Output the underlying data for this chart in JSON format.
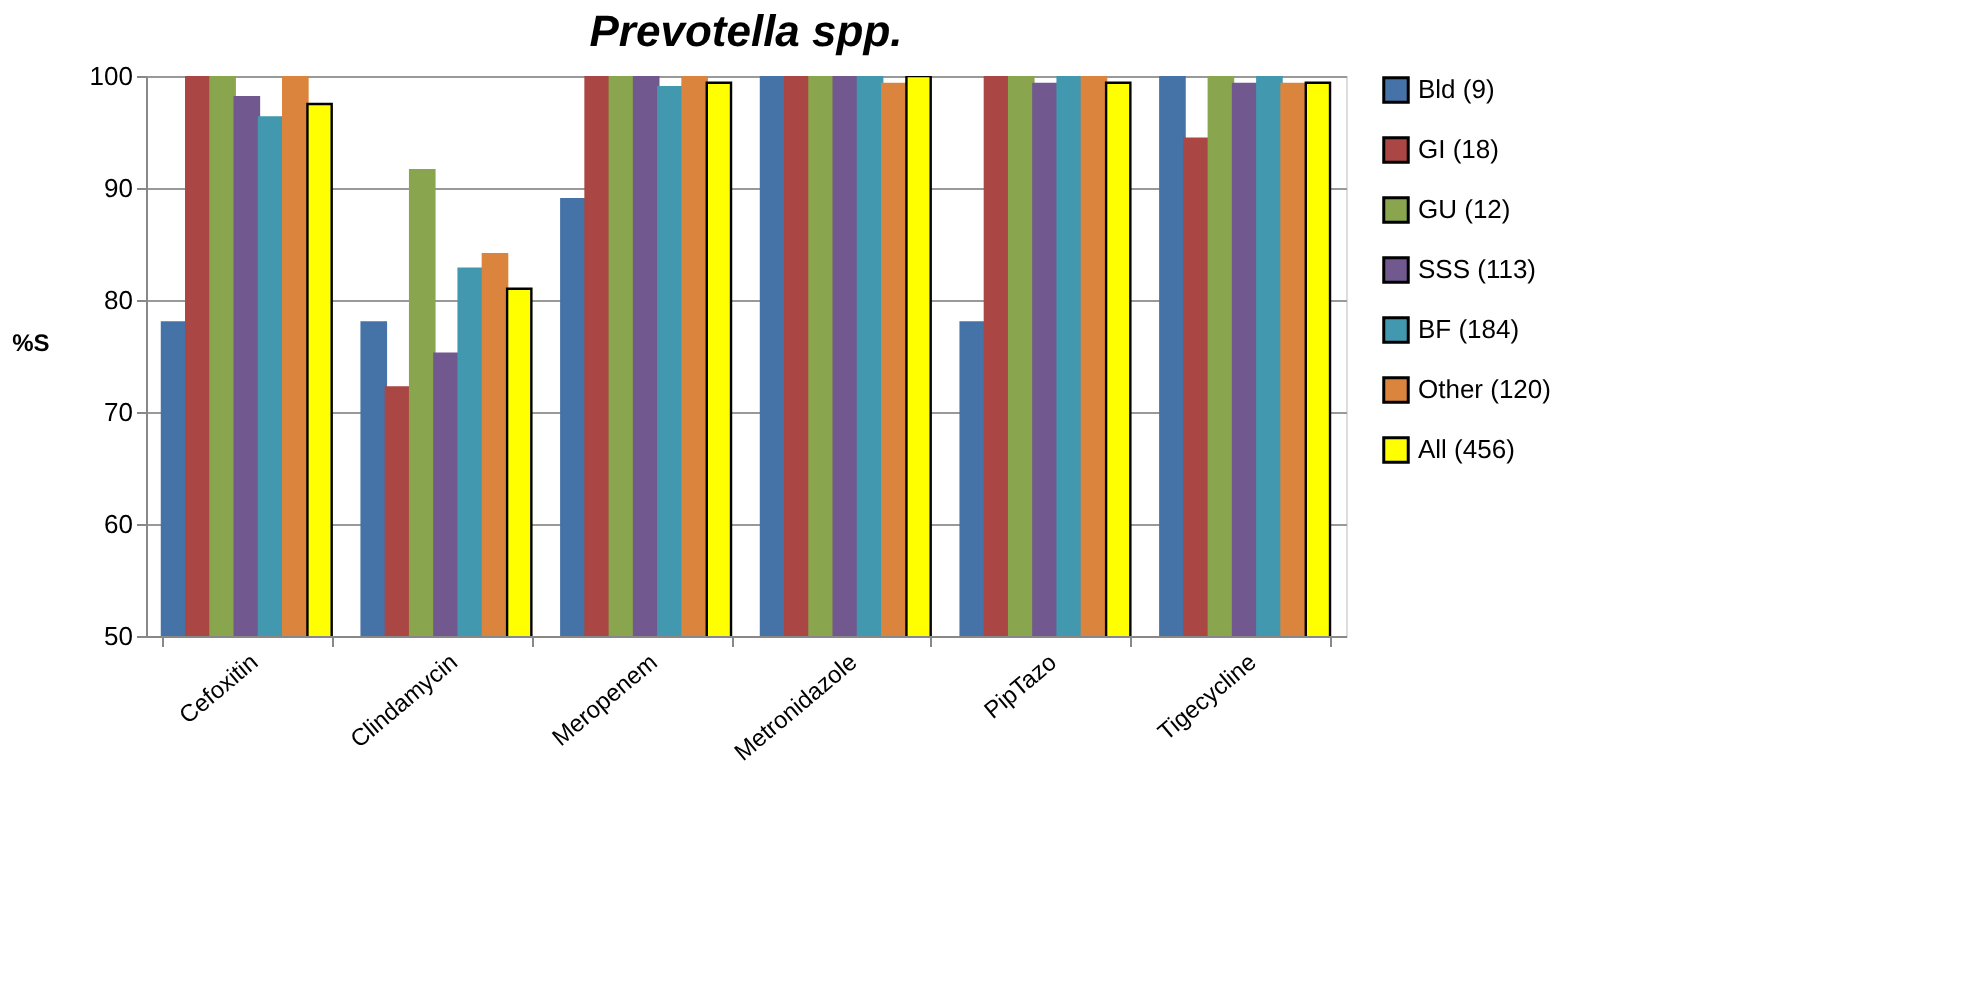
{
  "chart_data": {
    "type": "bar",
    "title": "Prevotella spp.",
    "ylabel": "%S",
    "categories": [
      "Cefoxitin",
      "Clindamycin",
      "Meropenem",
      "Metronidazole",
      "PipTazo",
      "Tigecycline"
    ],
    "series": [
      {
        "name": "Bld (9)",
        "color": "#4572a7",
        "values": [
          78,
          78,
          89,
          100,
          78,
          100
        ]
      },
      {
        "name": "GI (18)",
        "color": "#aa4643",
        "values": [
          100,
          72.2,
          100,
          100,
          100,
          94.4
        ]
      },
      {
        "name": "GU (12)",
        "color": "#89a54e",
        "values": [
          100,
          91.6,
          100,
          100,
          100,
          100
        ]
      },
      {
        "name": "SSS (113)",
        "color": "#71588f",
        "values": [
          98.1,
          75.2,
          100,
          100,
          99.3,
          99.3
        ]
      },
      {
        "name": "BF (184)",
        "color": "#4198af",
        "values": [
          96.3,
          82.8,
          99.0,
          100,
          100,
          100
        ]
      },
      {
        "name": "Other (120)",
        "color": "#db843d",
        "values": [
          100,
          84.1,
          100,
          99.3,
          100,
          99.3
        ]
      },
      {
        "name": "All (456)",
        "color": "#ffff00",
        "values": [
          97.5,
          81.0,
          99.4,
          100,
          99.4,
          99.4
        ]
      }
    ],
    "ylim": [
      50,
      100
    ],
    "yticks": [
      50,
      60,
      70,
      80,
      90,
      100
    ],
    "grid": "y",
    "legend": "right"
  }
}
